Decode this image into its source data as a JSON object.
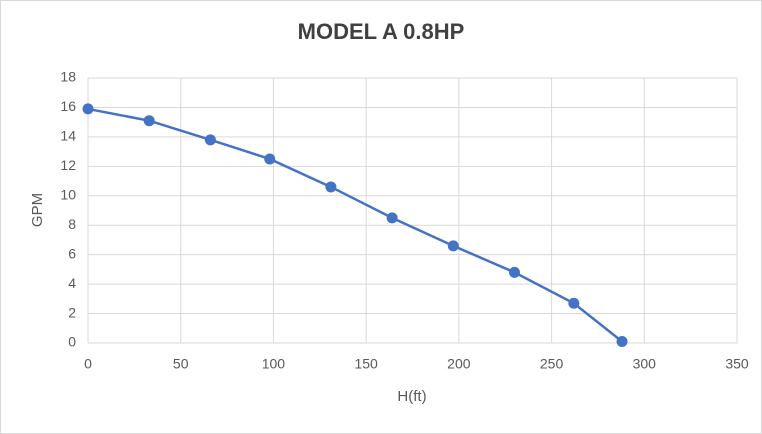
{
  "chart_data": {
    "type": "line",
    "title": "MODEL A 0.8HP",
    "x_label": "H(ft)",
    "y_label": "GPM",
    "x": [
      0,
      33,
      66,
      98,
      131,
      164,
      197,
      230,
      262,
      288
    ],
    "values": [
      15.9,
      15.1,
      13.8,
      12.5,
      10.6,
      8.5,
      6.6,
      4.8,
      2.7,
      0.1
    ],
    "color": "#4472c4",
    "xlim": [
      0,
      350
    ],
    "xticks": [
      0,
      50,
      100,
      150,
      200,
      250,
      300,
      350
    ],
    "ylim": [
      0,
      18
    ],
    "yticks": [
      0,
      2,
      4,
      6,
      8,
      10,
      12,
      14,
      16,
      18
    ],
    "grid": true,
    "markers": true
  }
}
